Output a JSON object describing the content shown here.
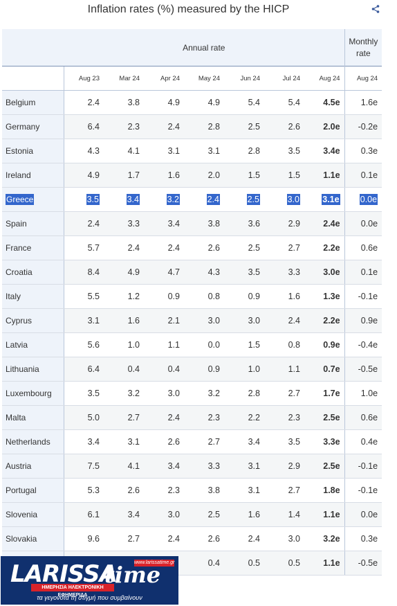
{
  "title": "Inflation rates (%) measured by the HICP",
  "header": {
    "annual_group": "Annual rate",
    "monthly_group": "Monthly rate",
    "columns": [
      "Aug 23",
      "Mar 24",
      "Apr 24",
      "May 24",
      "Jun 24",
      "Jul 24",
      "Aug 24",
      "Aug 24"
    ]
  },
  "rows": [
    {
      "country": "Belgium",
      "values": [
        "2.4",
        "3.8",
        "4.9",
        "4.9",
        "5.4",
        "5.4",
        "4.5e",
        "1.6e"
      ]
    },
    {
      "country": "Germany",
      "values": [
        "6.4",
        "2.3",
        "2.4",
        "2.8",
        "2.5",
        "2.6",
        "2.0e",
        "-0.2e"
      ]
    },
    {
      "country": "Estonia",
      "values": [
        "4.3",
        "4.1",
        "3.1",
        "3.1",
        "2.8",
        "3.5",
        "3.4e",
        "0.3e"
      ]
    },
    {
      "country": "Ireland",
      "values": [
        "4.9",
        "1.7",
        "1.6",
        "2.0",
        "1.5",
        "1.5",
        "1.1e",
        "0.1e"
      ]
    },
    {
      "country": "Greece",
      "values": [
        "3.5",
        "3.4",
        "3.2",
        "2.4",
        "2.5",
        "3.0",
        "3.1e",
        "0.0e"
      ],
      "selected": true
    },
    {
      "country": "Spain",
      "values": [
        "2.4",
        "3.3",
        "3.4",
        "3.8",
        "3.6",
        "2.9",
        "2.4e",
        "0.0e"
      ]
    },
    {
      "country": "France",
      "values": [
        "5.7",
        "2.4",
        "2.4",
        "2.6",
        "2.5",
        "2.7",
        "2.2e",
        "0.6e"
      ]
    },
    {
      "country": "Croatia",
      "values": [
        "8.4",
        "4.9",
        "4.7",
        "4.3",
        "3.5",
        "3.3",
        "3.0e",
        "0.1e"
      ]
    },
    {
      "country": "Italy",
      "values": [
        "5.5",
        "1.2",
        "0.9",
        "0.8",
        "0.9",
        "1.6",
        "1.3e",
        "-0.1e"
      ]
    },
    {
      "country": "Cyprus",
      "values": [
        "3.1",
        "1.6",
        "2.1",
        "3.0",
        "3.0",
        "2.4",
        "2.2e",
        "0.9e"
      ]
    },
    {
      "country": "Latvia",
      "values": [
        "5.6",
        "1.0",
        "1.1",
        "0.0",
        "1.5",
        "0.8",
        "0.9e",
        "-0.4e"
      ]
    },
    {
      "country": "Lithuania",
      "values": [
        "6.4",
        "0.4",
        "0.4",
        "0.9",
        "1.0",
        "1.1",
        "0.7e",
        "-0.5e"
      ]
    },
    {
      "country": "Luxembourg",
      "values": [
        "3.5",
        "3.2",
        "3.0",
        "3.2",
        "2.8",
        "2.7",
        "1.7e",
        "1.0e"
      ]
    },
    {
      "country": "Malta",
      "values": [
        "5.0",
        "2.7",
        "2.4",
        "2.3",
        "2.2",
        "2.3",
        "2.5e",
        "0.6e"
      ]
    },
    {
      "country": "Netherlands",
      "values": [
        "3.4",
        "3.1",
        "2.6",
        "2.7",
        "3.4",
        "3.5",
        "3.3e",
        "0.4e"
      ]
    },
    {
      "country": "Austria",
      "values": [
        "7.5",
        "4.1",
        "3.4",
        "3.3",
        "3.1",
        "2.9",
        "2.5e",
        "-0.1e"
      ]
    },
    {
      "country": "Portugal",
      "values": [
        "5.3",
        "2.6",
        "2.3",
        "3.8",
        "3.1",
        "2.7",
        "1.8e",
        "-0.1e"
      ]
    },
    {
      "country": "Slovenia",
      "values": [
        "6.1",
        "3.4",
        "3.0",
        "2.5",
        "1.6",
        "1.4",
        "1.1e",
        "0.0e"
      ]
    },
    {
      "country": "Slovakia",
      "values": [
        "9.6",
        "2.7",
        "2.4",
        "2.6",
        "2.4",
        "3.0",
        "3.2e",
        "0.3e"
      ]
    },
    {
      "country": "",
      "values": [
        "",
        "",
        "",
        "0.4",
        "0.5",
        "0.5",
        "1.1e",
        "-0.5e"
      ]
    }
  ],
  "logo": {
    "name_left": "LARISSA",
    "name_right": "time",
    "website": "www.larissatime.gr",
    "tagline_bar": "ΗΜΕΡΗΣΙΑ ΗΛΕΚΤΡΟΝΙΚΗ ΕΦΗΜΕΡΙΔΑ",
    "slogan": "τα γεγονότα τη στιγμή που συμβαίνουν"
  },
  "colors": {
    "header_bg": "#eef3fa",
    "selection": "#3366cc",
    "logo_bg": "#10306e",
    "logo_red": "#d8232a"
  },
  "icons": {
    "share": "share-icon"
  }
}
